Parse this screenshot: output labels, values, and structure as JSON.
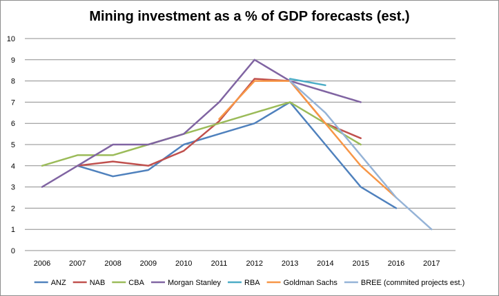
{
  "chart_data": {
    "type": "line",
    "title": "Mining investment as a % of GDP forecasts (est.)",
    "xlabel": "",
    "ylabel": "",
    "categories": [
      "2006",
      "2007",
      "2008",
      "2009",
      "2010",
      "2011",
      "2012",
      "2013",
      "2014",
      "2015",
      "2016",
      "2017"
    ],
    "x": [
      2006,
      2007,
      2008,
      2009,
      2010,
      2011,
      2012,
      2013,
      2014,
      2015,
      2016,
      2017
    ],
    "ylim": [
      0,
      10
    ],
    "yticks": [
      "0",
      "1",
      "2",
      "3",
      "4",
      "5",
      "6",
      "7",
      "8",
      "9",
      "10"
    ],
    "grid": "horizontal",
    "legend": "bottom",
    "series": [
      {
        "name": "ANZ",
        "color": "#4f81bd",
        "points": [
          [
            2007,
            4
          ],
          [
            2008,
            3.5
          ],
          [
            2009,
            3.8
          ],
          [
            2010,
            5
          ],
          [
            2011,
            5.5
          ],
          [
            2012,
            6
          ],
          [
            2013,
            7
          ],
          [
            2014,
            5
          ],
          [
            2015,
            3
          ],
          [
            2016,
            2
          ]
        ]
      },
      {
        "name": "NAB",
        "color": "#c0504d",
        "points": [
          [
            2007,
            4
          ],
          [
            2008,
            4.2
          ],
          [
            2009,
            4
          ],
          [
            2010,
            4.7
          ],
          [
            2011,
            6.1
          ],
          [
            2012,
            8.1
          ],
          [
            2013,
            8
          ],
          [
            2014,
            6
          ],
          [
            2015,
            5.3
          ]
        ]
      },
      {
        "name": "CBA",
        "color": "#9bbb59",
        "points": [
          [
            2006,
            4
          ],
          [
            2007,
            4.5
          ],
          [
            2008,
            4.5
          ],
          [
            2009,
            5
          ],
          [
            2010,
            5.5
          ],
          [
            2011,
            6
          ],
          [
            2012,
            6.5
          ],
          [
            2013,
            7
          ],
          [
            2014,
            6
          ],
          [
            2015,
            5
          ]
        ]
      },
      {
        "name": "Morgan Stanley",
        "color": "#8064a2",
        "points": [
          [
            2006,
            3
          ],
          [
            2007,
            4
          ],
          [
            2008,
            5
          ],
          [
            2009,
            5
          ],
          [
            2010,
            5.5
          ],
          [
            2011,
            7
          ],
          [
            2012,
            9
          ],
          [
            2013,
            8
          ],
          [
            2014,
            7.5
          ],
          [
            2015,
            7
          ]
        ]
      },
      {
        "name": "RBA",
        "color": "#4bacc6",
        "points": [
          [
            2013,
            8.1
          ],
          [
            2014,
            7.8
          ]
        ]
      },
      {
        "name": "Goldman Sachs",
        "color": "#f79646",
        "points": [
          [
            2011,
            6.2
          ],
          [
            2012,
            8
          ],
          [
            2013,
            8
          ],
          [
            2014,
            6
          ],
          [
            2015,
            4
          ],
          [
            2016,
            2.5
          ]
        ]
      },
      {
        "name": "BREE (commited projects est.)",
        "color": "#95b3d7",
        "points": [
          [
            2013,
            8
          ],
          [
            2014,
            6.5
          ],
          [
            2015,
            4.5
          ],
          [
            2016,
            2.5
          ],
          [
            2017,
            1
          ]
        ]
      }
    ]
  }
}
